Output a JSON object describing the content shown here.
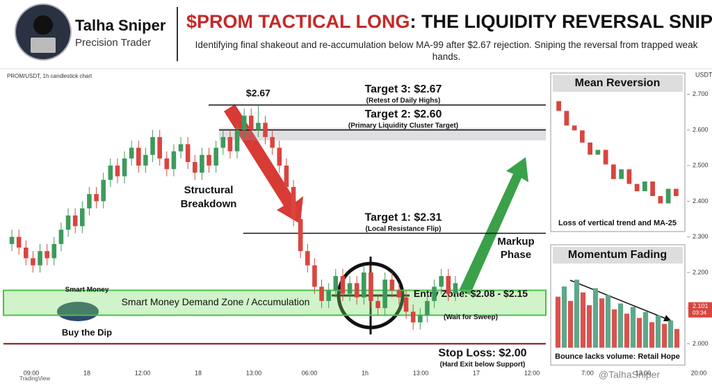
{
  "header": {
    "name": "Talha Sniper",
    "role": "Precision Trader",
    "title_highlight": "$PROM TACTICAL LONG",
    "title_rest": ": THE LIQUIDITY REVERSAL SNIPE",
    "subtitle": "Identifying final shakeout and re-accumulation below MA-99 after $2.67 rejection. Sniping the reversal from trapped weak hands."
  },
  "chart_data": {
    "type": "candlestick",
    "title": "PROM/USDT, 1h candlestick chart",
    "y_axis_label": "USDT",
    "ylim": [
      1.95,
      2.75
    ],
    "yticks": [
      {
        "value": 2.0,
        "label": "2.000"
      },
      {
        "value": 2.1,
        "label": "2.100"
      },
      {
        "value": 2.2,
        "label": "2.200"
      },
      {
        "value": 2.3,
        "label": "2.300"
      },
      {
        "value": 2.4,
        "label": "2.400"
      },
      {
        "value": 2.5,
        "label": "2.500"
      },
      {
        "value": 2.6,
        "label": "2.600"
      },
      {
        "value": 2.7,
        "label": "2.700"
      }
    ],
    "x_labels": [
      "09:00",
      "18",
      "12:00",
      "18",
      "13:00",
      "06:00",
      "1h",
      "13:00",
      "17",
      "12:00",
      "7:00",
      "13:00",
      "20:00"
    ],
    "up_color": "#3d9a5c",
    "down_color": "#d9453f",
    "open": [
      2.28,
      2.3,
      2.27,
      2.24,
      2.22,
      2.26,
      2.24,
      2.28,
      2.32,
      2.36,
      2.33,
      2.38,
      2.42,
      2.4,
      2.46,
      2.5,
      2.47,
      2.52,
      2.55,
      2.5,
      2.53,
      2.58,
      2.52,
      2.49,
      2.54,
      2.56,
      2.51,
      2.48,
      2.53,
      2.5,
      2.55,
      2.58,
      2.54,
      2.6,
      2.64,
      2.6,
      2.62,
      2.58,
      2.55,
      2.5,
      2.44,
      2.35,
      2.26,
      2.22,
      2.16,
      2.12,
      2.15,
      2.19,
      2.14,
      2.17,
      2.13,
      2.2,
      2.12,
      2.1,
      2.18,
      2.15,
      2.13,
      2.09,
      2.06,
      2.08,
      2.12,
      2.16,
      2.19,
      2.14
    ],
    "high": [
      2.32,
      2.32,
      2.29,
      2.26,
      2.28,
      2.28,
      2.3,
      2.34,
      2.38,
      2.38,
      2.4,
      2.44,
      2.44,
      2.48,
      2.52,
      2.52,
      2.54,
      2.57,
      2.57,
      2.55,
      2.6,
      2.6,
      2.54,
      2.56,
      2.58,
      2.58,
      2.53,
      2.55,
      2.55,
      2.57,
      2.6,
      2.6,
      2.62,
      2.66,
      2.66,
      2.67,
      2.64,
      2.6,
      2.57,
      2.52,
      2.46,
      2.37,
      2.28,
      2.24,
      2.18,
      2.17,
      2.21,
      2.21,
      2.19,
      2.19,
      2.22,
      2.22,
      2.14,
      2.2,
      2.2,
      2.17,
      2.15,
      2.11,
      2.1,
      2.14,
      2.18,
      2.21,
      2.21,
      2.19
    ],
    "low": [
      2.26,
      2.25,
      2.22,
      2.2,
      2.2,
      2.22,
      2.22,
      2.26,
      2.3,
      2.31,
      2.31,
      2.36,
      2.38,
      2.38,
      2.44,
      2.45,
      2.45,
      2.5,
      2.48,
      2.48,
      2.51,
      2.5,
      2.47,
      2.47,
      2.52,
      2.49,
      2.46,
      2.46,
      2.48,
      2.48,
      2.53,
      2.52,
      2.52,
      2.58,
      2.58,
      2.58,
      2.56,
      2.53,
      2.48,
      2.42,
      2.33,
      2.24,
      2.2,
      2.14,
      2.1,
      2.1,
      2.13,
      2.12,
      2.12,
      2.11,
      2.11,
      2.1,
      2.08,
      2.08,
      2.13,
      2.11,
      2.07,
      2.04,
      2.04,
      2.06,
      2.1,
      2.14,
      2.12,
      2.12
    ],
    "close": [
      2.3,
      2.27,
      2.24,
      2.22,
      2.26,
      2.24,
      2.28,
      2.32,
      2.36,
      2.33,
      2.38,
      2.42,
      2.4,
      2.46,
      2.5,
      2.47,
      2.52,
      2.55,
      2.5,
      2.53,
      2.58,
      2.52,
      2.49,
      2.54,
      2.56,
      2.51,
      2.48,
      2.53,
      2.5,
      2.55,
      2.58,
      2.54,
      2.6,
      2.64,
      2.6,
      2.62,
      2.58,
      2.55,
      2.5,
      2.44,
      2.35,
      2.26,
      2.22,
      2.16,
      2.12,
      2.15,
      2.19,
      2.14,
      2.17,
      2.13,
      2.2,
      2.12,
      2.1,
      2.18,
      2.15,
      2.13,
      2.09,
      2.06,
      2.08,
      2.12,
      2.16,
      2.19,
      2.14,
      2.17
    ],
    "peak_label": "$2.67",
    "levels": [
      {
        "value": 2.67,
        "label": "Target 3: $2.67",
        "note": "(Retest of Daily Highs)"
      },
      {
        "value": 2.6,
        "label": "Target 2: $2.60",
        "note": "(Primary Liquidity Cluster Target)"
      },
      {
        "value": 2.31,
        "label": "Target 1: $2.31",
        "note": "(Local Resistance Flip)"
      },
      {
        "value": 2.0,
        "label": "Stop Loss: $2.00",
        "note": "(Hard Exit below Support)"
      }
    ],
    "zone": {
      "low": 2.08,
      "high": 2.15,
      "label": "Entry Zone: $2.08 - $2.15",
      "note": "(Wait for Sweep)",
      "name": "Smart Money Demand Zone / Accumulation"
    },
    "annotations": {
      "breakdown_1": "Structural",
      "breakdown_2": "Breakdown",
      "markup_1": "Markup",
      "markup_2": "Phase",
      "whale_top": "Smart Money",
      "whale_bottom": "Buy the Dip"
    },
    "current_price": 2.101,
    "countdown": "03:34",
    "insets": [
      {
        "type": "candlestick",
        "title": "Mean Reversion",
        "caption": "Loss of vertical trend and MA-25",
        "ylim": [
          2.25,
          2.75
        ],
        "open": [
          2.72,
          2.68,
          2.62,
          2.6,
          2.55,
          2.5,
          2.52,
          2.46,
          2.4,
          2.44,
          2.38,
          2.35,
          2.39,
          2.33,
          2.3,
          2.36
        ],
        "close": [
          2.68,
          2.62,
          2.6,
          2.55,
          2.5,
          2.52,
          2.46,
          2.4,
          2.44,
          2.38,
          2.35,
          2.39,
          2.33,
          2.3,
          2.36,
          2.33
        ]
      },
      {
        "type": "bar",
        "title": "Momentum Fading",
        "caption": "Bounce lacks volume: Retail Hope",
        "ylim": [
          0,
          90
        ],
        "values": [
          60,
          72,
          55,
          80,
          65,
          50,
          70,
          58,
          62,
          45,
          52,
          40,
          48,
          35,
          42,
          30,
          38,
          28,
          32,
          22
        ],
        "colors": [
          "#d9534f",
          "#5fa88a",
          "#d9534f",
          "#5fa88a",
          "#d9534f",
          "#d9534f",
          "#5fa88a",
          "#d9534f",
          "#5fa88a",
          "#d9534f",
          "#5fa88a",
          "#d9534f",
          "#5fa88a",
          "#d9534f",
          "#5fa88a",
          "#d9534f",
          "#5fa88a",
          "#d9534f",
          "#5fa88a",
          "#d9534f"
        ]
      }
    ]
  },
  "footer": {
    "watermark": "@TalhaSniper",
    "source": "TradingView"
  }
}
